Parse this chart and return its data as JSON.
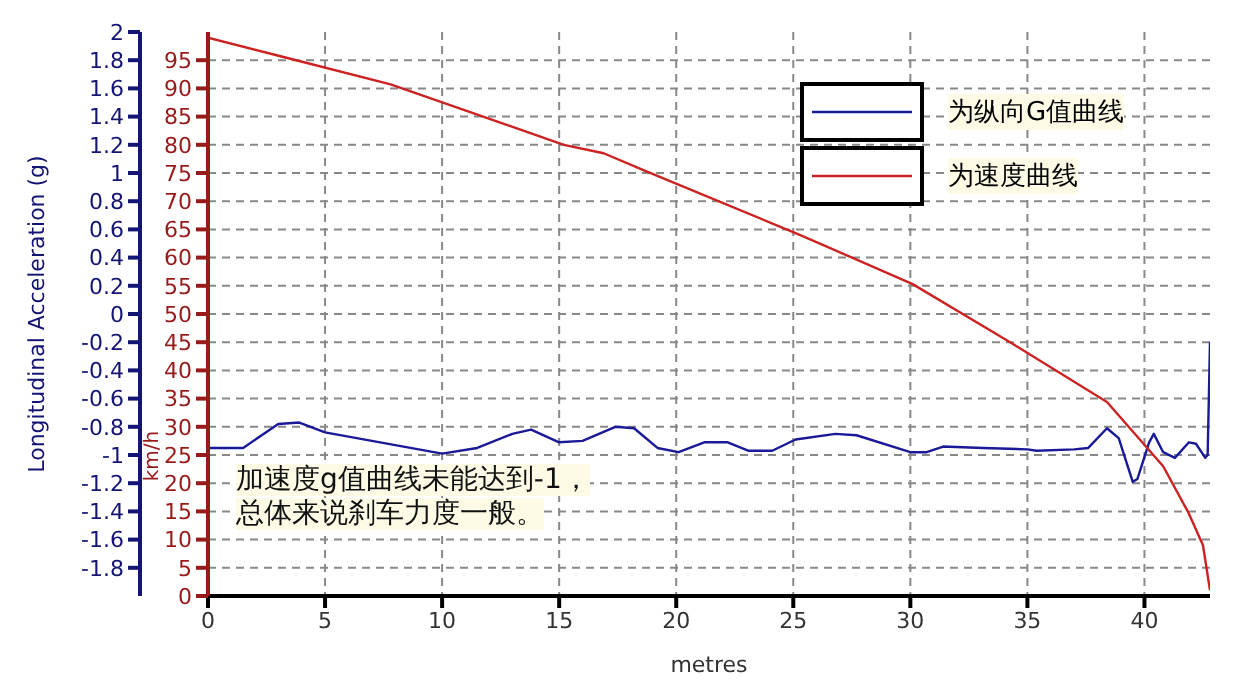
{
  "chart_data": {
    "type": "line",
    "xlabel": "metres",
    "ylabel": "Longitudinal Acceleration (g)",
    "y2label": "km/h",
    "xlim": [
      0,
      42.8
    ],
    "xticks": [
      0,
      5,
      10,
      15,
      20,
      25,
      30,
      35,
      40
    ],
    "ylim": [
      -2,
      2
    ],
    "yticks": [
      2,
      1.8,
      1.6,
      1.4,
      1.2,
      1,
      0.8,
      0.6,
      0.4,
      0.2,
      0,
      -0.2,
      -0.4,
      -0.6,
      -0.8,
      -1,
      -1.2,
      -1.4,
      -1.6,
      -1.8
    ],
    "y2lim": [
      0,
      100
    ],
    "y2ticks": [
      0,
      5,
      10,
      15,
      20,
      25,
      30,
      35,
      40,
      45,
      50,
      55,
      60,
      65,
      70,
      75,
      80,
      85,
      90,
      95
    ],
    "grid": true,
    "legend": "top right",
    "line_style": "solid",
    "marker": "none",
    "series": [
      {
        "name": "为纵向G值曲线",
        "color": "#1a1a99",
        "axis": "y",
        "x": [
          0,
          1.5,
          3,
          3.9,
          5,
          10,
          11.5,
          13,
          13.8,
          15,
          16,
          17.4,
          18.2,
          19.2,
          20.1,
          21.2,
          22.2,
          23.1,
          24.1,
          25.1,
          26.8,
          27.7,
          30,
          30.7,
          31.4,
          33.1,
          35,
          35.4,
          37,
          37.6,
          38.4,
          38.9,
          39.5,
          39.7,
          40.2,
          40.4,
          40.8,
          41.3,
          41.9,
          42.2,
          42.6,
          42.7,
          42.8
        ],
        "values": [
          -0.95,
          -0.95,
          -0.78,
          -0.77,
          -0.84,
          -0.99,
          -0.95,
          -0.85,
          -0.82,
          -0.91,
          -0.9,
          -0.8,
          -0.81,
          -0.95,
          -0.98,
          -0.91,
          -0.91,
          -0.97,
          -0.97,
          -0.89,
          -0.85,
          -0.86,
          -0.98,
          -0.98,
          -0.94,
          -0.95,
          -0.96,
          -0.97,
          -0.96,
          -0.95,
          -0.81,
          -0.88,
          -1.19,
          -1.17,
          -0.91,
          -0.85,
          -0.98,
          -1.02,
          -0.91,
          -0.92,
          -1.02,
          -1.0,
          -0.2
        ]
      },
      {
        "name": "为速度曲线",
        "color": "#cc2222",
        "axis": "y2",
        "x": [
          0,
          3.1,
          7.8,
          15.2,
          16.9,
          18.6,
          25.3,
          30.1,
          34.1,
          38.4,
          40.8,
          41.9,
          42.5,
          42.8
        ],
        "values": [
          99,
          95.7,
          90.7,
          80,
          78.5,
          75.5,
          64,
          55.3,
          45.4,
          34.4,
          23,
          14.6,
          9,
          1
        ]
      }
    ],
    "annotations": [
      "加速度g值曲线未能达到-1，总体来说刹车力度一般。"
    ]
  }
}
